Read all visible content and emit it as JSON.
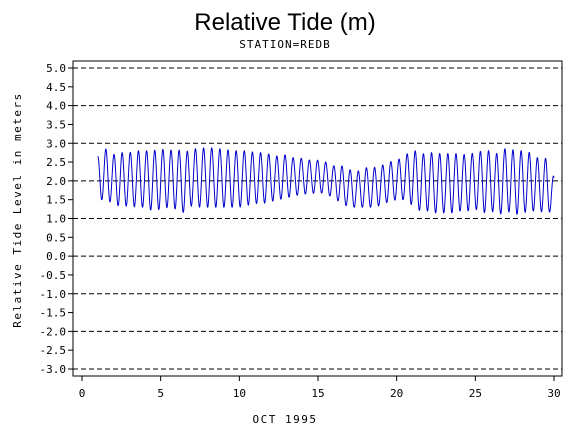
{
  "chart_data": {
    "type": "line",
    "title": "Relative Tide (m)",
    "subtitle": "STATION=REDB",
    "xlabel": "OCT 1995",
    "ylabel": "Relative Tide Level in meters",
    "xlim": [
      0,
      30
    ],
    "ylim": [
      -3.0,
      5.0
    ],
    "x_ticks": [
      0,
      5,
      10,
      15,
      20,
      25,
      30
    ],
    "y_ticks": [
      5.0,
      4.5,
      4.0,
      3.5,
      3.0,
      2.5,
      2.0,
      1.5,
      1.0,
      0.5,
      0.0,
      -0.5,
      -1.0,
      -1.5,
      -2.0,
      -2.5,
      -3.0
    ],
    "y_tick_labels": [
      "5.0",
      "4.5",
      "4.0",
      "3.5",
      "3.0",
      "2.5",
      "2.0",
      "1.5",
      "1.0",
      "0.5",
      "0.0",
      "-0.5",
      "-1.0",
      "-1.5",
      "-2.0",
      "-2.5",
      "-3.0"
    ],
    "reference_lines_y": [
      5.0,
      4.0,
      3.0,
      2.0,
      1.0,
      0.0,
      -1.0,
      -2.0,
      -3.0
    ],
    "grid": "dashed horizontal lines at every 1.0 m",
    "line_color": "#0000cc",
    "series": [
      {
        "x": [
          1,
          1.5,
          2,
          2.5,
          3,
          3.5,
          4,
          4.5,
          5,
          5.5,
          6,
          6.5,
          7,
          7.5,
          8,
          8.5,
          9,
          9.5,
          10,
          10.5,
          11,
          11.5,
          12,
          12.5,
          13,
          13.5,
          14,
          14.5,
          15,
          15.5,
          16,
          16.5,
          17,
          17.5,
          18,
          18.5,
          19,
          19.5,
          20,
          20.5,
          21,
          21.5,
          22,
          22.5,
          23,
          23.5,
          24,
          24.5,
          25,
          25.5,
          26,
          26.5,
          27,
          27.5,
          28,
          28.5,
          29,
          29.5,
          30
        ],
        "high": [
          2.65,
          2.85,
          2.7,
          2.75,
          2.75,
          2.8,
          2.8,
          2.8,
          2.85,
          2.8,
          2.85,
          2.75,
          2.85,
          2.85,
          2.9,
          2.85,
          2.85,
          2.8,
          2.8,
          2.8,
          2.75,
          2.75,
          2.7,
          2.65,
          2.7,
          2.6,
          2.6,
          2.55,
          2.55,
          2.5,
          2.4,
          2.4,
          2.3,
          2.25,
          2.35,
          2.35,
          2.4,
          2.5,
          2.55,
          2.65,
          2.85,
          2.7,
          2.75,
          2.75,
          2.7,
          2.75,
          2.7,
          2.7,
          2.75,
          2.8,
          2.8,
          2.7,
          2.9,
          2.8,
          2.8,
          2.75,
          2.6,
          2.6,
          2.1
        ],
        "low": [
          1.5,
          1.5,
          1.4,
          1.3,
          1.35,
          1.3,
          1.3,
          1.2,
          1.25,
          1.3,
          1.25,
          1.15,
          1.35,
          1.3,
          1.3,
          1.3,
          1.3,
          1.3,
          1.3,
          1.35,
          1.4,
          1.4,
          1.45,
          1.5,
          1.55,
          1.6,
          1.65,
          1.65,
          1.7,
          1.65,
          1.55,
          1.4,
          1.3,
          1.3,
          1.3,
          1.3,
          1.35,
          1.45,
          1.5,
          1.5,
          1.35,
          1.2,
          1.2,
          1.15,
          1.15,
          1.15,
          1.2,
          1.2,
          1.25,
          1.15,
          1.2,
          1.1,
          1.2,
          1.1,
          1.15,
          1.2,
          1.2,
          1.15,
          1.2
        ]
      }
    ]
  }
}
